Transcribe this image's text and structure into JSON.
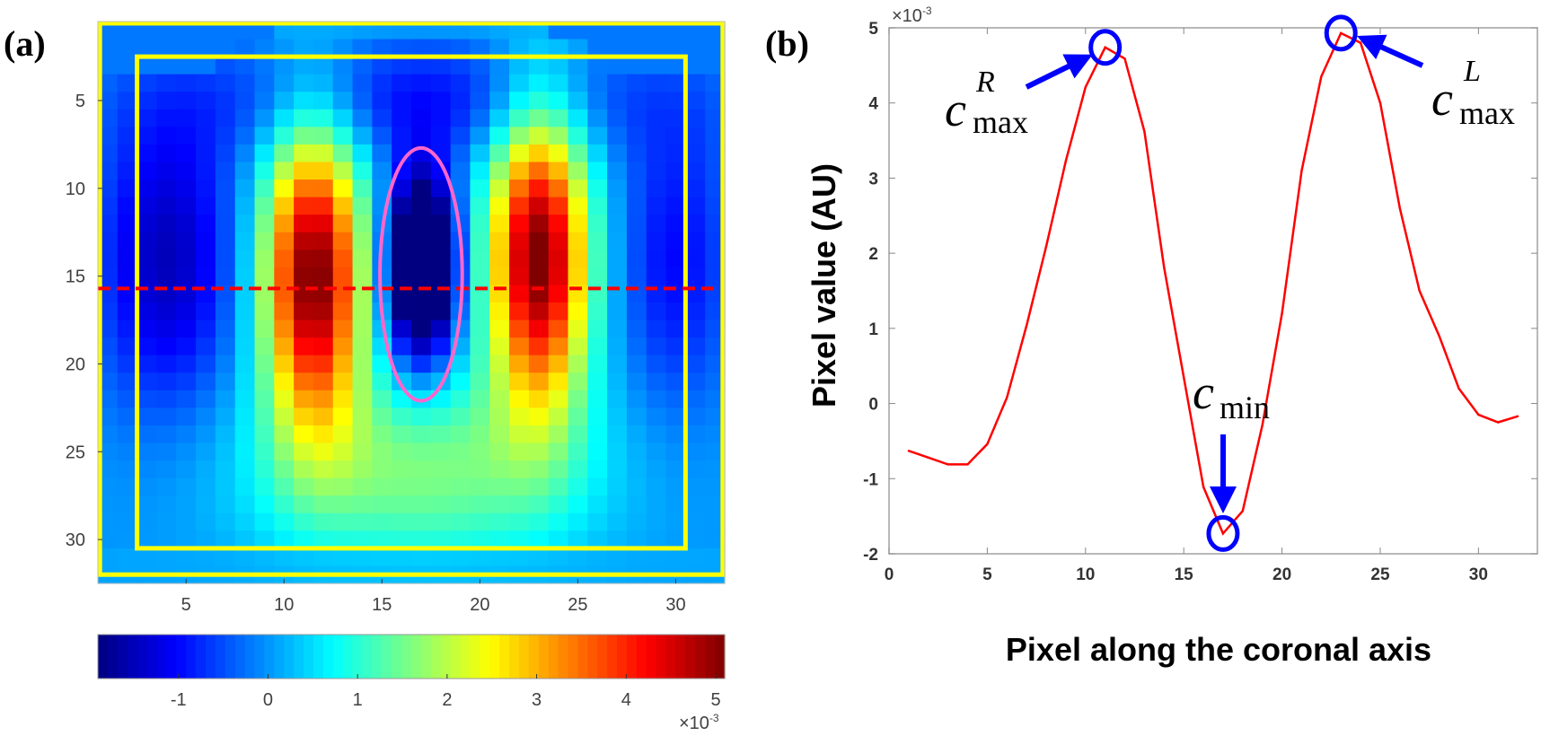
{
  "panels": {
    "a": "(a)",
    "b": "(b)"
  },
  "chart_data": [
    {
      "type": "heatmap",
      "panel": "(a)",
      "rows": 32,
      "cols": 32,
      "colormap": "jet",
      "clim": [
        -1.9,
        5.1
      ],
      "xticks": [
        5,
        10,
        15,
        20,
        25,
        30
      ],
      "yticks": [
        5,
        10,
        15,
        20,
        25,
        30
      ],
      "colorbar": {
        "ticks": [
          -1,
          0,
          1,
          2,
          3,
          4,
          5
        ],
        "exponent_label": "×10",
        "exponent": "-3",
        "placement": "bottom"
      },
      "overlays": {
        "outer_rect": {
          "color": "#ffff00",
          "x": [
            0.6,
            32.4
          ],
          "y": [
            0.6,
            32.0
          ]
        },
        "inner_rect": {
          "color": "#ffff00",
          "x": [
            2.5,
            30.5
          ],
          "y": [
            2.5,
            30.5
          ]
        },
        "profile_line": {
          "color": "#ff0000",
          "style": "dashed",
          "row": 15.7
        },
        "ellipse": {
          "color": "#ff66cc",
          "center": [
            17,
            14.9
          ],
          "semi_axes": [
            2.1,
            7.2
          ]
        }
      },
      "features": {
        "left_peak_center": [
          11.5,
          14
        ],
        "right_peak_center": [
          23,
          14
        ],
        "trough_center": [
          17,
          14.5
        ],
        "peak_value": 5.0,
        "trough_value": -1.8
      }
    },
    {
      "type": "line",
      "panel": "(b)",
      "xlabel": "Pixel along the coronal axis",
      "ylabel": "Pixel value (AU)",
      "y_exponent_label": "×10",
      "y_exponent": "-3",
      "xlim": [
        0,
        33
      ],
      "ylim": [
        -2,
        5
      ],
      "xticks": [
        0,
        5,
        10,
        15,
        20,
        25,
        30
      ],
      "yticks": [
        -2,
        -1,
        0,
        1,
        2,
        3,
        4,
        5
      ],
      "grid": false,
      "line_color": "#ff0000",
      "x": [
        1,
        2,
        3,
        4,
        5,
        6,
        7,
        8,
        9,
        10,
        11,
        12,
        13,
        14,
        15,
        16,
        17,
        18,
        19,
        20,
        21,
        22,
        23,
        24,
        25,
        26,
        27,
        28,
        29,
        30,
        31,
        32
      ],
      "y": [
        -0.63,
        -0.72,
        -0.81,
        -0.81,
        -0.54,
        0.08,
        1.04,
        2.09,
        3.23,
        4.21,
        4.74,
        4.59,
        3.62,
        1.81,
        0.35,
        -1.11,
        -1.73,
        -1.43,
        -0.29,
        1.2,
        3.1,
        4.35,
        4.93,
        4.8,
        4.0,
        2.6,
        1.5,
        0.9,
        0.2,
        -0.15,
        -0.25,
        -0.17
      ],
      "annotations": [
        {
          "id": "cmax-r",
          "base": "c",
          "sub": "max",
          "sup": "R",
          "point": [
            11,
            4.74
          ],
          "color": "#0000ff"
        },
        {
          "id": "cmax-l",
          "base": "c",
          "sub": "max",
          "sup": "L",
          "point": [
            23,
            4.93
          ],
          "color": "#0000ff"
        },
        {
          "id": "cmin",
          "base": "c",
          "sub": "min",
          "sup": "",
          "point": [
            17,
            -1.73
          ],
          "color": "#0000ff"
        }
      ]
    }
  ]
}
